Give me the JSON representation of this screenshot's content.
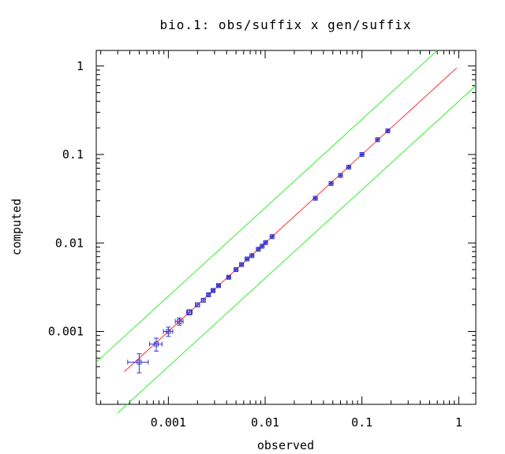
{
  "chart_data": {
    "type": "scatter",
    "title": "bio.1: obs/suffix x gen/suffix",
    "xlabel": "observed",
    "ylabel": "computed",
    "xscale": "log",
    "yscale": "log",
    "xlim": [
      0.00018,
      1.5
    ],
    "ylim": [
      0.00015,
      1.5
    ],
    "xticks": [
      {
        "value": 0.001,
        "label": "0.001"
      },
      {
        "value": 0.01,
        "label": "0.01"
      },
      {
        "value": 0.1,
        "label": "0.1"
      },
      {
        "value": 1,
        "label": "1"
      }
    ],
    "yticks": [
      {
        "value": 0.001,
        "label": "0.001"
      },
      {
        "value": 0.01,
        "label": "0.01"
      },
      {
        "value": 0.1,
        "label": "0.1"
      },
      {
        "value": 1,
        "label": "1"
      }
    ],
    "grid": false,
    "colors": {
      "points": "#3333cc",
      "fit_line": "#ff3030",
      "bound_lines": "#33ee33",
      "axes": "#000000"
    },
    "reference_lines": [
      {
        "kind": "y=x",
        "x_range": [
          0.00035,
          0.95
        ]
      },
      {
        "kind": "upper bound (y=2.5x)",
        "x_range": [
          0.00018,
          0.6
        ]
      },
      {
        "kind": "lower bound (y=0.4x)",
        "x_range": [
          0.0003,
          1.5
        ]
      }
    ],
    "points": [
      {
        "x": 0.0005,
        "y": 0.00045,
        "xerr": 0.00012,
        "yerr": 0.00011
      },
      {
        "x": 0.00075,
        "y": 0.00072,
        "xerr": 0.00011,
        "yerr": 0.00012
      },
      {
        "x": 0.001,
        "y": 0.001,
        "xerr": 0.00011,
        "yerr": 0.00012
      },
      {
        "x": 0.0013,
        "y": 0.0013,
        "xerr": 0.00012,
        "yerr": 0.00012
      },
      {
        "x": 0.00165,
        "y": 0.00165,
        "xerr": 0.00011,
        "yerr": 0.00011
      },
      {
        "x": 0.002,
        "y": 0.002,
        "xerr": 0.0001,
        "yerr": 0.0001
      },
      {
        "x": 0.0023,
        "y": 0.00225,
        "xerr": 0.0001,
        "yerr": 0.0001
      },
      {
        "x": 0.0026,
        "y": 0.0026,
        "xerr": 0.0001,
        "yerr": 0.0001
      },
      {
        "x": 0.0029,
        "y": 0.0029,
        "xerr": 0.0001,
        "yerr": 0.0001
      },
      {
        "x": 0.0033,
        "y": 0.0033,
        "xerr": 0.0001,
        "yerr": 0.0001
      },
      {
        "x": 0.0042,
        "y": 0.0041,
        "xerr": 0.0001,
        "yerr": 0.0001
      },
      {
        "x": 0.005,
        "y": 0.005,
        "xerr": 0.0001,
        "yerr": 0.0001
      },
      {
        "x": 0.0057,
        "y": 0.0057,
        "xerr": 0.0001,
        "yerr": 0.0001
      },
      {
        "x": 0.0065,
        "y": 0.0066,
        "xerr": 0.0001,
        "yerr": 0.0001
      },
      {
        "x": 0.0073,
        "y": 0.0072,
        "xerr": 0.0001,
        "yerr": 0.0001
      },
      {
        "x": 0.0085,
        "y": 0.0085,
        "xerr": 0.0001,
        "yerr": 0.0001
      },
      {
        "x": 0.0093,
        "y": 0.0092,
        "xerr": 0.0001,
        "yerr": 0.0001
      },
      {
        "x": 0.0101,
        "y": 0.0101,
        "xerr": 0.0001,
        "yerr": 0.0001
      },
      {
        "x": 0.0118,
        "y": 0.0118,
        "xerr": 0.0001,
        "yerr": 0.0001
      },
      {
        "x": 0.033,
        "y": 0.032,
        "xerr": 0.0004,
        "yerr": 0.0004
      },
      {
        "x": 0.048,
        "y": 0.047,
        "xerr": 0.0005,
        "yerr": 0.0005
      },
      {
        "x": 0.06,
        "y": 0.058,
        "xerr": 0.0006,
        "yerr": 0.0006
      },
      {
        "x": 0.073,
        "y": 0.072,
        "xerr": 0.0007,
        "yerr": 0.0007
      },
      {
        "x": 0.1,
        "y": 0.1,
        "xerr": 0.001,
        "yerr": 0.001
      },
      {
        "x": 0.145,
        "y": 0.147,
        "xerr": 0.0015,
        "yerr": 0.0015
      },
      {
        "x": 0.185,
        "y": 0.185,
        "xerr": 0.0018,
        "yerr": 0.0018
      }
    ]
  }
}
